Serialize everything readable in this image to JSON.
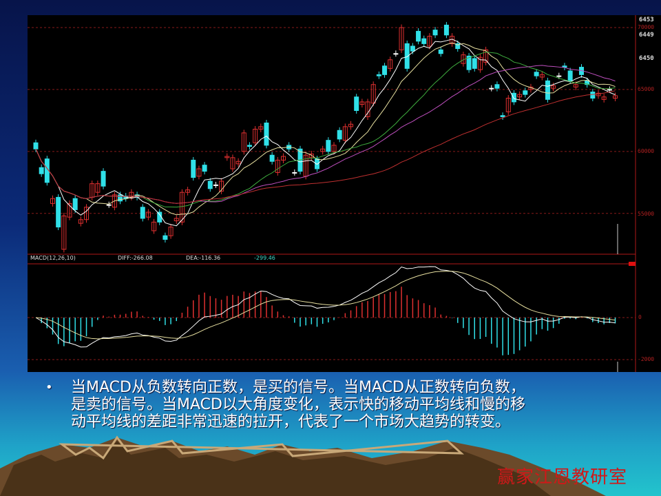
{
  "chart_data": {
    "type": "candlestick",
    "title": "",
    "price_axis": {
      "ticks": [
        "70000",
        "65000",
        "60000",
        "55000"
      ],
      "tick_values": [
        70000,
        65000,
        60000,
        55000
      ],
      "ylim": [
        51500,
        70200
      ],
      "grid": true
    },
    "top_right_labels": [
      "6453",
      "6449",
      "6450"
    ],
    "candles_open_close": [
      [
        60700,
        60200
      ],
      [
        58700,
        58200
      ],
      [
        59400,
        57500
      ],
      [
        55800,
        56200
      ],
      [
        56300,
        53900
      ],
      [
        52100,
        54800
      ],
      [
        54700,
        55800
      ],
      [
        56200,
        55300
      ],
      [
        54200,
        54500
      ],
      [
        54500,
        55500
      ],
      [
        56300,
        57400
      ],
      [
        56700,
        57400
      ],
      [
        58400,
        57200
      ],
      [
        55700,
        55700
      ],
      [
        55500,
        56500
      ],
      [
        56500,
        56000
      ],
      [
        56400,
        56200
      ],
      [
        56300,
        56700
      ],
      [
        56500,
        56300
      ],
      [
        55500,
        54600
      ],
      [
        54700,
        55100
      ],
      [
        53600,
        54300
      ],
      [
        55100,
        54300
      ],
      [
        53200,
        52900
      ],
      [
        53200,
        53900
      ],
      [
        54400,
        54600
      ],
      [
        54300,
        56700
      ],
      [
        56700,
        56900
      ],
      [
        59300,
        57900
      ],
      [
        58000,
        58600
      ],
      [
        58900,
        58400
      ],
      [
        57600,
        57000
      ],
      [
        57300,
        57300
      ],
      [
        56800,
        57600
      ],
      [
        59500,
        59600
      ],
      [
        58600,
        59500
      ],
      [
        59000,
        59200
      ],
      [
        60000,
        61500
      ],
      [
        60500,
        60400
      ],
      [
        60700,
        61800
      ],
      [
        61800,
        62000
      ],
      [
        62300,
        60500
      ],
      [
        59700,
        59200
      ],
      [
        58300,
        59300
      ],
      [
        59300,
        59600
      ],
      [
        60500,
        60200
      ],
      [
        58300,
        58300
      ],
      [
        60200,
        58400
      ],
      [
        58000,
        59700
      ],
      [
        59500,
        59800
      ],
      [
        59400,
        58600
      ],
      [
        60000,
        60200
      ],
      [
        60900,
        60000
      ],
      [
        60000,
        60500
      ],
      [
        61700,
        61000
      ],
      [
        60900,
        62000
      ],
      [
        62000,
        62200
      ],
      [
        64400,
        63300
      ],
      [
        63800,
        64000
      ],
      [
        62800,
        64000
      ],
      [
        63900,
        65400
      ],
      [
        66200,
        66100
      ],
      [
        66900,
        66200
      ],
      [
        66700,
        67400
      ],
      [
        67900,
        67900
      ],
      [
        68200,
        70000
      ],
      [
        68700,
        66700
      ],
      [
        68500,
        68100
      ],
      [
        69700,
        68900
      ],
      [
        69100,
        68700
      ],
      [
        68500,
        69300
      ],
      [
        69800,
        69400
      ],
      [
        68200,
        67900
      ],
      [
        70200,
        69400
      ],
      [
        68700,
        69300
      ],
      [
        68700,
        68300
      ],
      [
        67100,
        67800
      ],
      [
        67700,
        66600
      ],
      [
        67500,
        66700
      ],
      [
        66600,
        67600
      ],
      [
        67200,
        68200
      ],
      [
        65100,
        65100
      ],
      [
        65400,
        65100
      ],
      [
        62900,
        62800
      ],
      [
        63200,
        64300
      ],
      [
        64700,
        64000
      ],
      [
        64400,
        64600
      ],
      [
        64900,
        64600
      ],
      [
        65000,
        65200
      ],
      [
        66400,
        66100
      ],
      [
        66000,
        66200
      ],
      [
        65700,
        64200
      ],
      [
        65100,
        65300
      ],
      [
        66100,
        66100
      ],
      [
        66900,
        66800
      ],
      [
        66500,
        65700
      ],
      [
        65200,
        65400
      ],
      [
        66800,
        66200
      ],
      [
        65700,
        65400
      ],
      [
        64800,
        64300
      ],
      [
        64500,
        64700
      ],
      [
        64200,
        64400
      ],
      [
        65000,
        65000
      ],
      [
        64300,
        64500
      ]
    ],
    "moving_averages": [
      {
        "period": 5,
        "color": "#ffffff"
      },
      {
        "period": 10,
        "color": "#e8e0a0"
      },
      {
        "period": 20,
        "color": "#3fae3f"
      },
      {
        "period": 30,
        "color": "#c050c0"
      },
      {
        "period": 60,
        "color": "#c03030"
      }
    ],
    "colors": {
      "up": "#e03030",
      "down": "#30e0e8",
      "flat": "#ffffff",
      "grid": "#8a1a1a",
      "background": "#000000"
    },
    "macd": {
      "label": "MACD(12,26,10)",
      "diff_label": "DIFF:-266.08",
      "dea_label": "DEA:-116.36",
      "macd_value": "-299.46",
      "params": [
        12,
        26,
        10
      ],
      "axis_ticks": [
        "0",
        "-2000"
      ],
      "tick_values": [
        0,
        -2000
      ]
    }
  },
  "body": {
    "bullet": "•",
    "lines": [
      "当MACD从负数转向正数，是买的信号。当MACD从正数转向负数，",
      "是卖的信号。当MACD以大角度变化，表示快的移动平均线和慢的移",
      "动平均线的差距非常迅速的拉开，代表了一个市场大趋势的转变。"
    ]
  },
  "watermark": "赢家江恩教研室"
}
